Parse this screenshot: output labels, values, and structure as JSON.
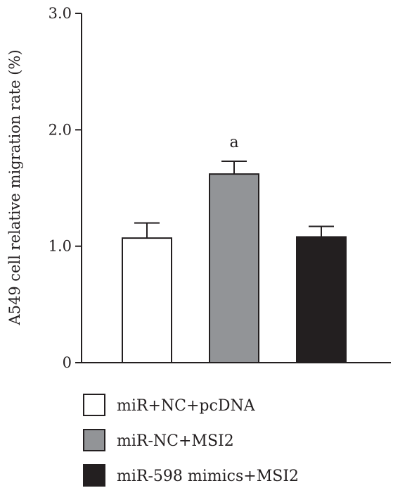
{
  "chart_data": {
    "type": "bar",
    "ylabel": "A549 cell relative migration rate (%)",
    "ylim": [
      0,
      3.0
    ],
    "yticks": [
      {
        "value": 0,
        "label": "0"
      },
      {
        "value": 1.0,
        "label": "1.0"
      },
      {
        "value": 2.0,
        "label": "2.0"
      },
      {
        "value": 3.0,
        "label": "3.0"
      }
    ],
    "grid": false,
    "legend_position": "bottom",
    "categories": [
      "miR+NC+pcDNA",
      "miR-NC+MSI2",
      "miR-598 mimics+MSI2"
    ],
    "values": [
      1.07,
      1.62,
      1.08
    ],
    "errors": [
      0.13,
      0.11,
      0.09
    ],
    "annotations": [
      "",
      "a",
      ""
    ],
    "colors": [
      "#ffffff",
      "#929497",
      "#231f20"
    ],
    "edge_color": "#231f20"
  }
}
